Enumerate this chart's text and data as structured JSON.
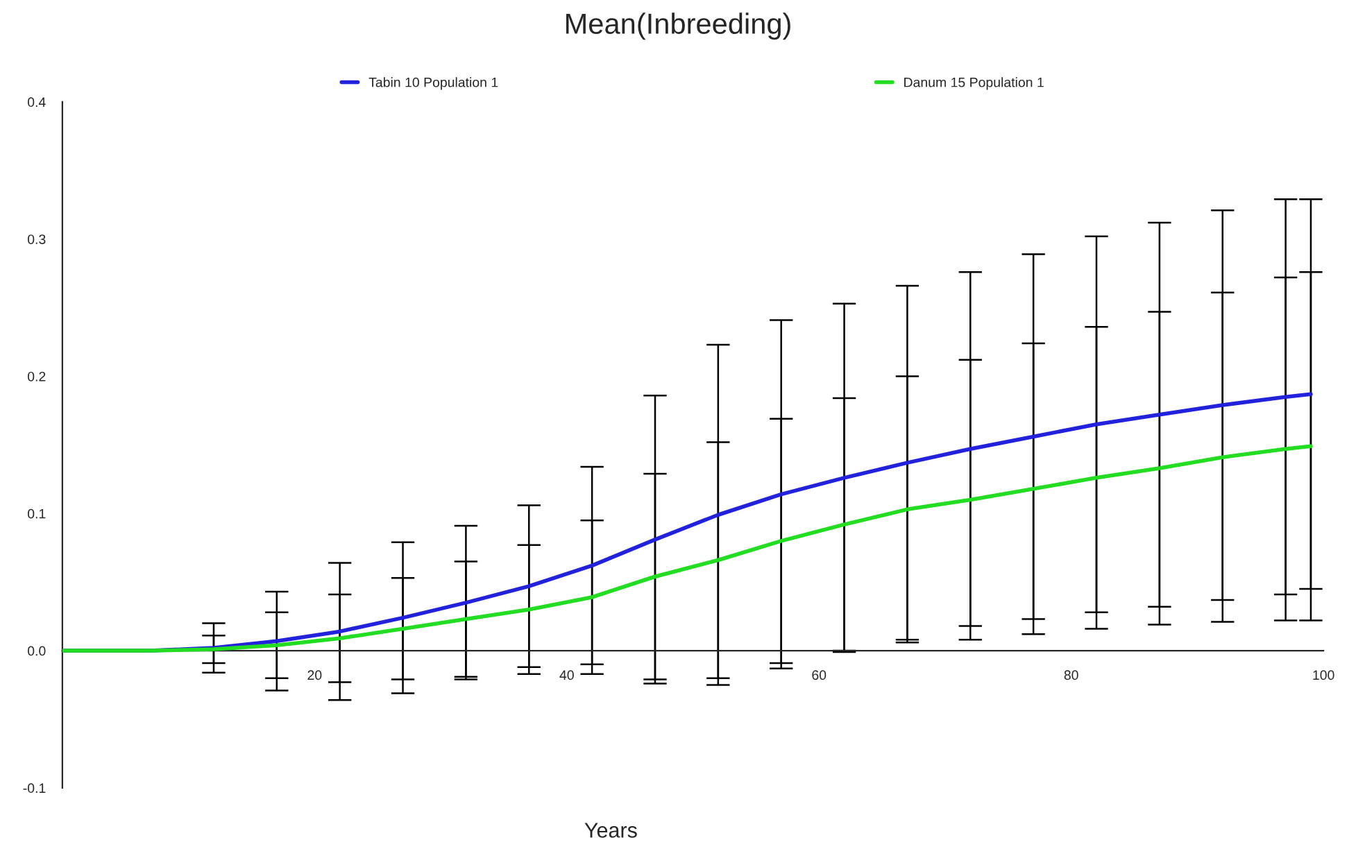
{
  "chart_data": {
    "type": "line",
    "title": "Mean(Inbreeding)",
    "xlabel": "Years",
    "x": [
      0,
      2,
      7,
      12,
      17,
      22,
      27,
      32,
      37,
      42,
      47,
      52,
      57,
      62,
      67,
      72,
      77,
      82,
      87,
      92,
      97,
      99
    ],
    "series": [
      {
        "name": "Tabin 10 Population 1",
        "color": "#2222dd",
        "values": [
          0,
          0,
          0,
          0.002,
          0.007,
          0.014,
          0.024,
          0.035,
          0.047,
          0.062,
          0.081,
          0.099,
          0.114,
          0.126,
          0.137,
          0.147,
          0.156,
          0.165,
          0.172,
          0.179,
          0.185,
          0.187
        ],
        "errors": [
          null,
          null,
          null,
          0.018,
          0.036,
          0.05,
          0.055,
          0.056,
          0.059,
          0.072,
          0.105,
          0.124,
          0.127,
          0.127,
          0.129,
          0.129,
          0.133,
          0.137,
          0.14,
          0.142,
          0.144,
          0.142
        ]
      },
      {
        "name": "Danum 15 Population 1",
        "color": "#22dd22",
        "values": [
          0,
          0,
          0,
          0.001,
          0.004,
          0.009,
          0.016,
          0.023,
          0.03,
          0.039,
          0.054,
          0.066,
          0.08,
          0.092,
          0.103,
          0.11,
          0.118,
          0.126,
          0.133,
          0.141,
          0.147,
          0.149
        ],
        "errors": [
          null,
          null,
          null,
          0.01,
          0.024,
          0.032,
          0.037,
          0.042,
          0.047,
          0.056,
          0.075,
          0.086,
          0.089,
          0.092,
          0.097,
          0.102,
          0.106,
          0.11,
          0.114,
          0.12,
          0.125,
          0.127
        ]
      }
    ],
    "xlim": [
      0,
      100
    ],
    "xticks": [
      20,
      40,
      60,
      80,
      100
    ],
    "ylim": [
      -0.1,
      0.4
    ],
    "yticks": [
      {
        "value": -0.1,
        "label": "-0.1"
      },
      {
        "value": 0,
        "label": "0.0"
      },
      {
        "value": 0.1,
        "label": "0.1"
      },
      {
        "value": 0.2,
        "label": "0.2"
      },
      {
        "value": 0.3,
        "label": "0.3"
      },
      {
        "value": 0.4,
        "label": "0.4"
      }
    ],
    "legend": "top",
    "grid": false,
    "marker": "none",
    "line_style": "solid"
  }
}
